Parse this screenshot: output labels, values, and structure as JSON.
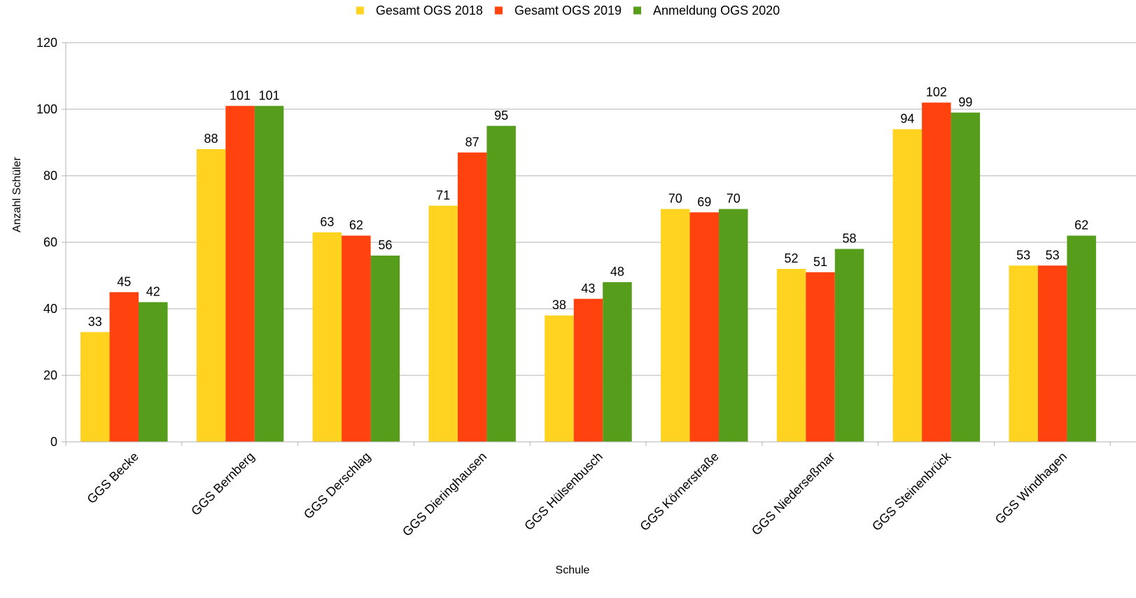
{
  "chart_data": {
    "type": "bar",
    "xlabel": "Schule",
    "ylabel": "Anzahl Schüler",
    "ylim": [
      0,
      120
    ],
    "yticks": [
      0,
      20,
      40,
      60,
      80,
      100,
      120
    ],
    "grid": true,
    "legend_position": "top",
    "categories": [
      "GGS Becke",
      "GGS Bernberg",
      "GGS Derschlag",
      "GGS Dieringhausen",
      "GGS Hülsenbusch",
      "GGS Körnerstraße",
      "GGS Niederseßmar",
      "GGS Steinenbrück",
      "GGS Windhagen"
    ],
    "series": [
      {
        "name": "Gesamt OGS 2018",
        "color": "#ffd320",
        "values": [
          33,
          88,
          63,
          71,
          38,
          70,
          52,
          94,
          53
        ]
      },
      {
        "name": "Gesamt OGS 2019",
        "color": "#ff420e",
        "values": [
          45,
          101,
          62,
          87,
          43,
          69,
          51,
          102,
          53
        ]
      },
      {
        "name": "Anmeldung OGS 2020",
        "color": "#579d1c",
        "values": [
          42,
          101,
          56,
          95,
          48,
          70,
          58,
          99,
          62
        ]
      }
    ]
  }
}
